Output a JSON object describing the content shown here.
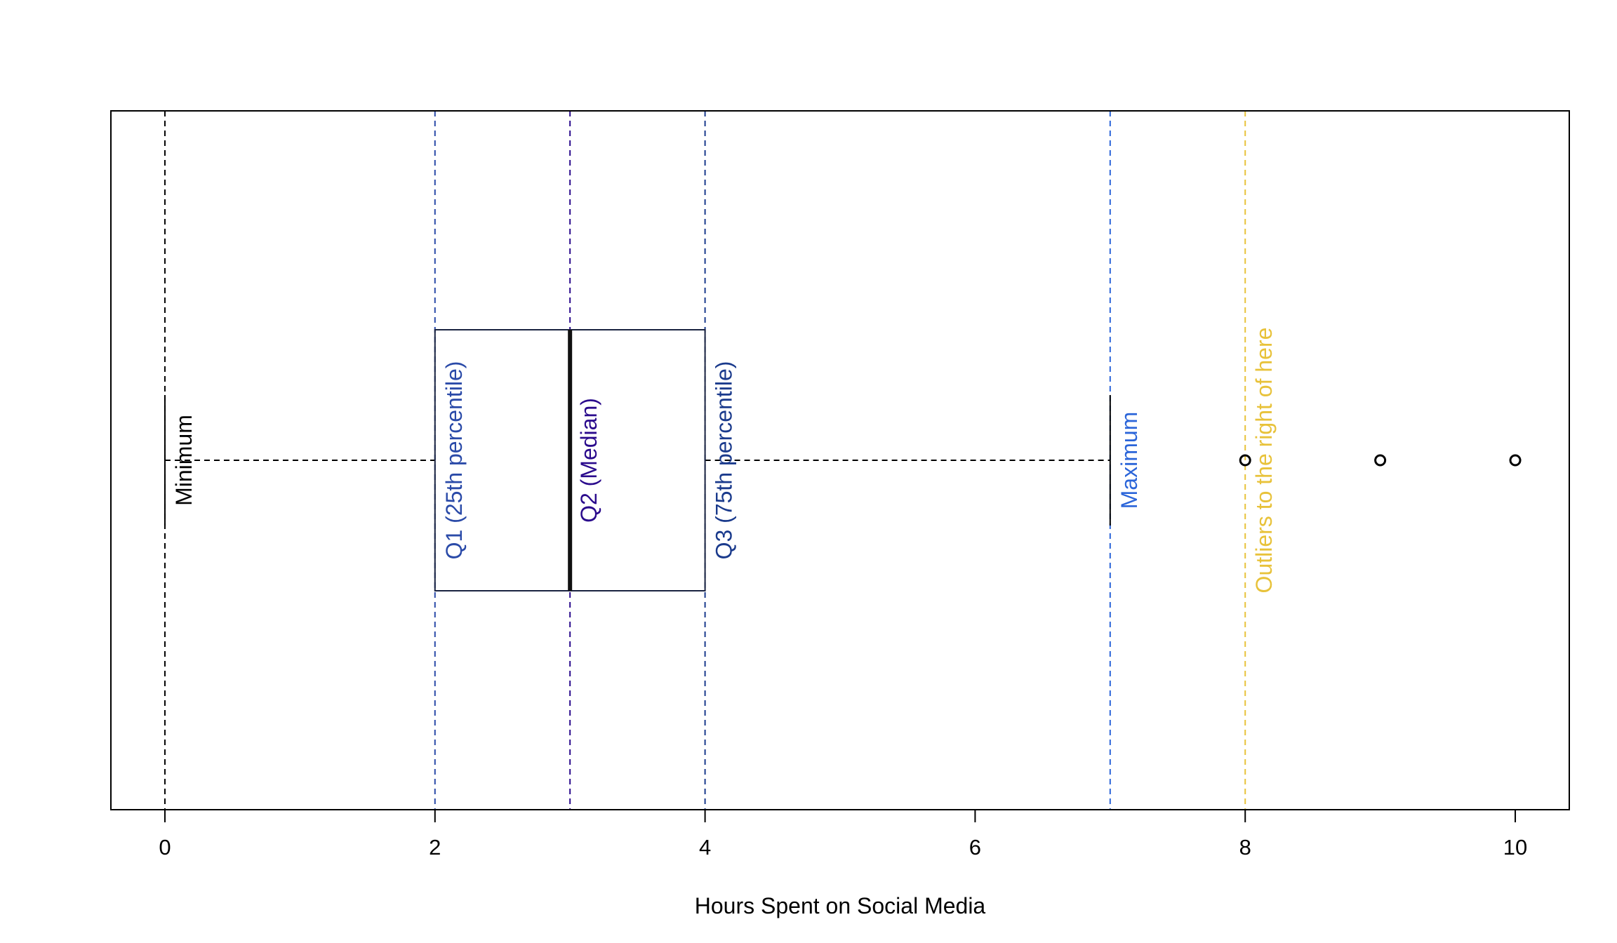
{
  "chart_data": {
    "type": "boxplot",
    "orientation": "horizontal",
    "title": "",
    "xlabel": "Hours Spent on Social Media",
    "ylabel": "",
    "xlim": [
      -0.4,
      10.4
    ],
    "xticks": [
      0,
      2,
      4,
      6,
      8,
      10
    ],
    "grid": false,
    "box": {
      "min": 0,
      "q1": 2,
      "median": 3,
      "q3": 4,
      "max": 7,
      "outliers": [
        8,
        9,
        10
      ]
    },
    "reference_lines": [
      {
        "x": 0,
        "color": "#000000",
        "label": "Minimum"
      },
      {
        "x": 2,
        "color": "#2a4aa8",
        "label": "Q1 (25th percentile)"
      },
      {
        "x": 3,
        "color": "#2a0a8c",
        "label": "Q2 (Median)"
      },
      {
        "x": 4,
        "color": "#1a3a8c",
        "label": "Q3 (75th percentile)"
      },
      {
        "x": 7,
        "color": "#2b65d9",
        "label": "Maximum"
      },
      {
        "x": 8,
        "color": "#e8c23a",
        "label": "Outliers to the right of here"
      }
    ]
  }
}
